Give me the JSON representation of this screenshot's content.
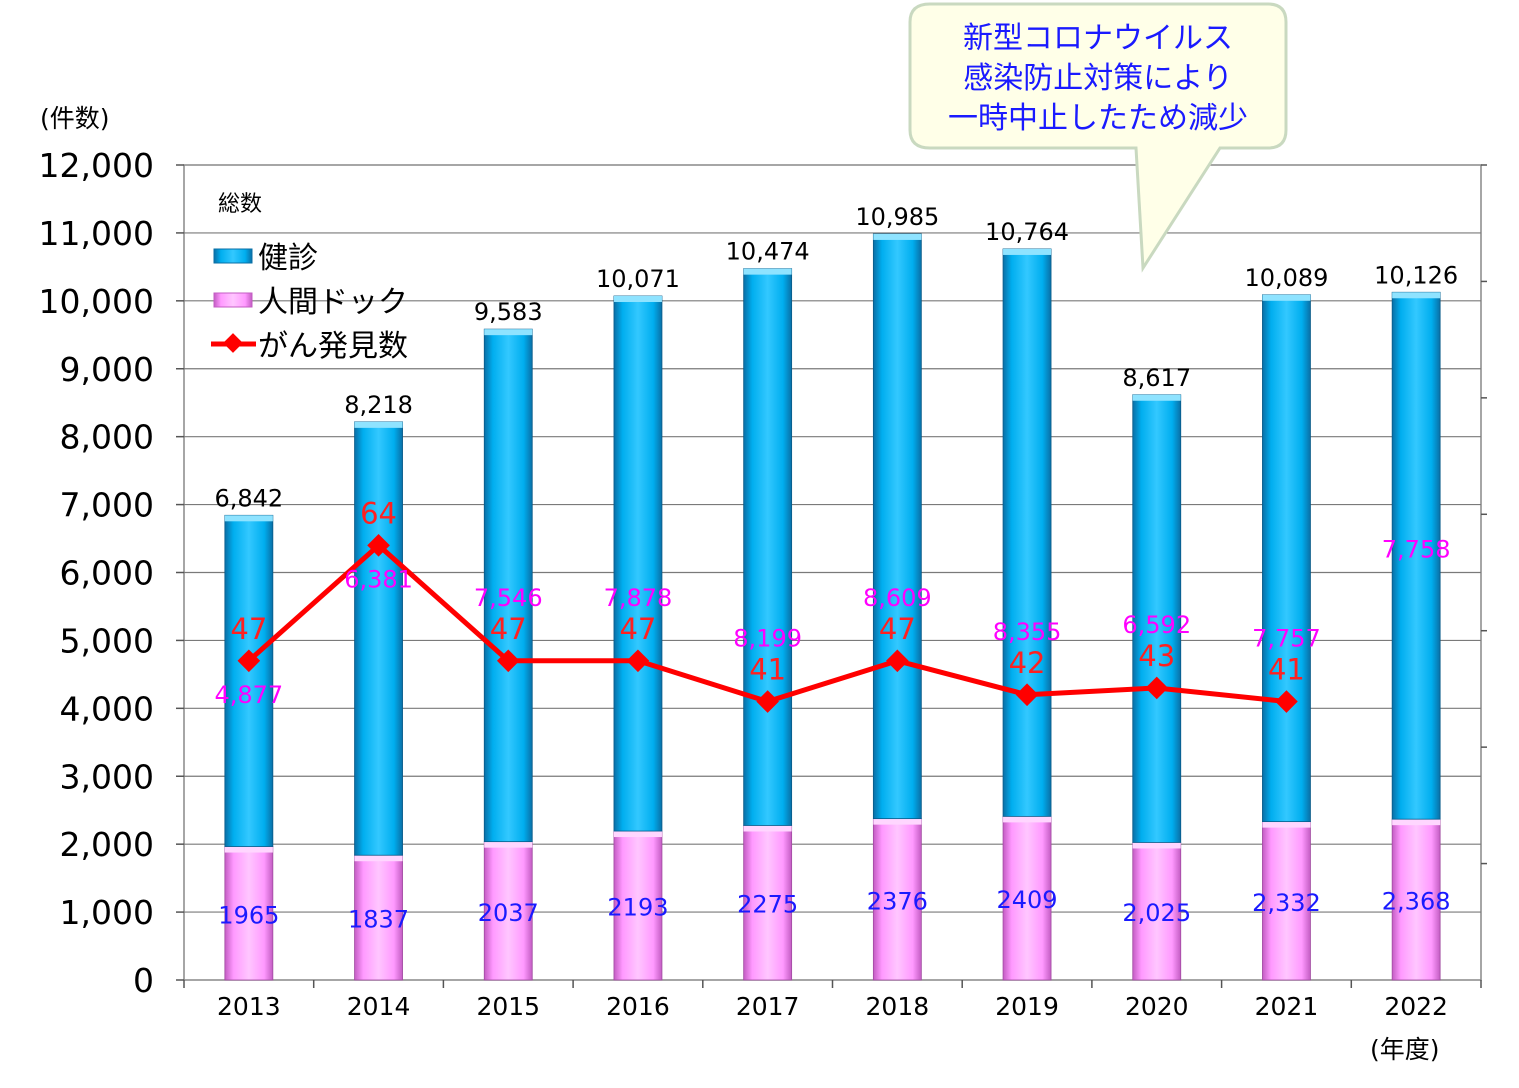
{
  "chart_data": {
    "type": "bar",
    "stacked": true,
    "ylabel": "(件数)",
    "xlabel": "(年度)",
    "ylim": [
      0,
      12000
    ],
    "yticks": [
      0,
      1000,
      2000,
      3000,
      4000,
      5000,
      6000,
      7000,
      8000,
      9000,
      10000,
      11000,
      12000
    ],
    "ytick_labels": [
      "0",
      "1,000",
      "2,000",
      "3,000",
      "4,000",
      "5,000",
      "6,000",
      "7,000",
      "8,000",
      "9,000",
      "10,000",
      "11,000",
      "12,000"
    ],
    "categories": [
      "2013",
      "2014",
      "2015",
      "2016",
      "2017",
      "2018",
      "2019",
      "2020",
      "2021",
      "2022"
    ],
    "legend_title": "総数",
    "legend_position": "top-left",
    "series": [
      {
        "name": "人間ドック",
        "kind": "bar",
        "color": "#ff99ff",
        "values": [
          1965,
          1837,
          2037,
          2193,
          2275,
          2376,
          2409,
          2025,
          2332,
          2368
        ],
        "labels": [
          "1965",
          "1837",
          "2037",
          "2193",
          "2275",
          "2376",
          "2409",
          "2,025",
          "2,332",
          "2,368"
        ]
      },
      {
        "name": "健診",
        "kind": "bar",
        "color": "#00aeef",
        "values": [
          4877,
          6381,
          7546,
          7878,
          8199,
          8609,
          8355,
          6592,
          7757,
          7758
        ],
        "labels": [
          "4,877",
          "6,381",
          "7,546",
          "7,878",
          "8,199",
          "8,609",
          "8,355",
          "6,592",
          "7,757",
          "7,758"
        ]
      },
      {
        "name": "がん発見数",
        "kind": "line",
        "color": "#ff0000",
        "values": [
          47,
          64,
          47,
          47,
          41,
          47,
          42,
          43,
          41,
          null
        ],
        "labels": [
          "47",
          "64",
          "47",
          "47",
          "41",
          "47",
          "42",
          "43",
          "41",
          ""
        ]
      }
    ],
    "totals": {
      "values": [
        6842,
        8218,
        9583,
        10071,
        10474,
        10985,
        10764,
        8617,
        10089,
        10126
      ],
      "labels": [
        "6,842",
        "8,218",
        "9,583",
        "10,071",
        "10,474",
        "10,985",
        "10,764",
        "8,617",
        "10,089",
        "10,126"
      ]
    },
    "secondary_ylim": [
      0,
      120
    ],
    "annotation": {
      "lines": [
        "新型コロナウイルス",
        "感染防止対策により",
        "一時中止したため減少"
      ],
      "target_category": "2020"
    }
  }
}
